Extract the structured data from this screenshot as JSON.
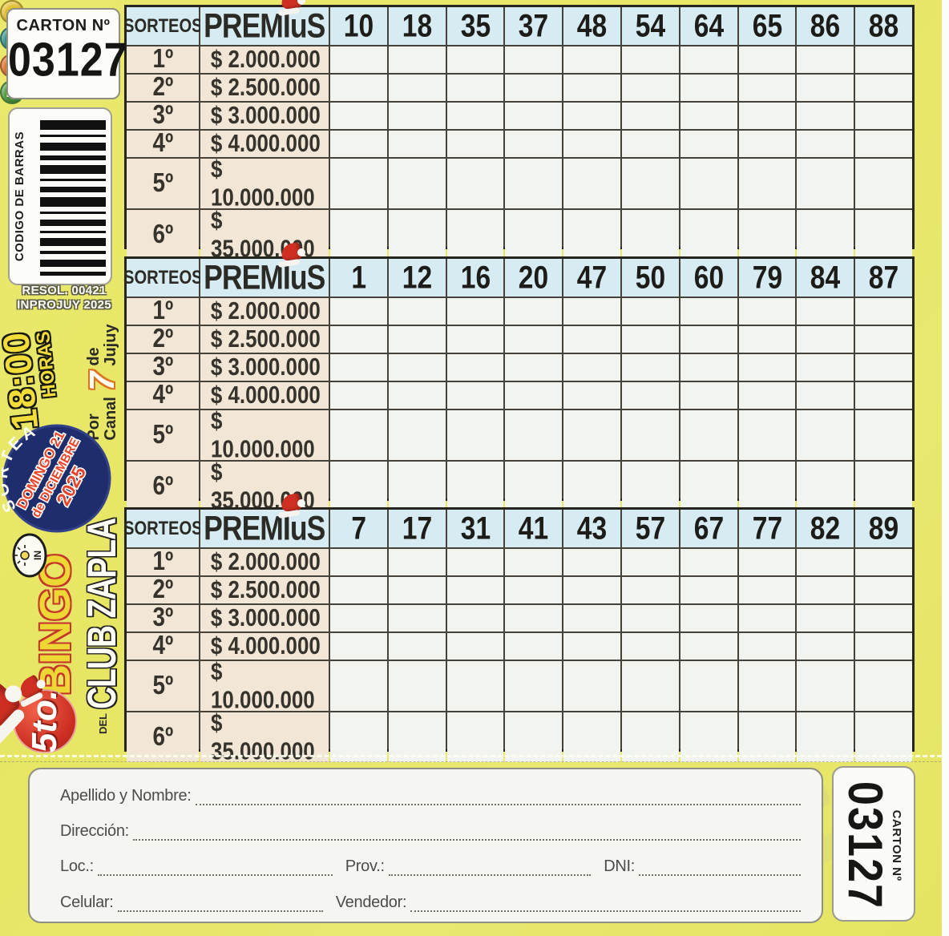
{
  "card": {
    "header_box": {
      "label": "CARTON Nº",
      "number": "03127"
    },
    "barcode": {
      "label": "CODIGO DE BARRAS"
    },
    "resolution": {
      "line1": "RESOL. 00421",
      "line2": "INPROJUY 2025"
    },
    "time_badge": {
      "time": "18:00",
      "unit": "HORAS"
    },
    "channel": {
      "word1": "Por",
      "word2": "Canal",
      "number": "7",
      "word3": "de",
      "word4": "Jujuy"
    },
    "draw_badge": {
      "arc": "SORTEA",
      "line1": "DOMINGO 21",
      "line2": "de DICIEMBRE",
      "line3": "2025"
    },
    "brand": {
      "mini_letters": [
        "M",
        "I",
        "N",
        "I"
      ],
      "mini_colors": [
        "#4f9d3e",
        "#e06f2a",
        "#2f8f86",
        "#e2bf2d"
      ],
      "bingo": "BINGO",
      "del": "DEL",
      "club": "CLUB ZAPLA",
      "edition": "5to.",
      "sun_text": "IN"
    }
  },
  "tables": [
    {
      "sorteos": "SORTEOS",
      "premios": "PREMIuS",
      "numbers": [
        "10",
        "18",
        "35",
        "37",
        "48",
        "54",
        "64",
        "65",
        "86",
        "88"
      ]
    },
    {
      "sorteos": "SORTEOS",
      "premios": "PREMIuS",
      "numbers": [
        "1",
        "12",
        "16",
        "20",
        "47",
        "50",
        "60",
        "79",
        "84",
        "87"
      ]
    },
    {
      "sorteos": "SORTEOS",
      "premios": "PREMIuS",
      "numbers": [
        "7",
        "17",
        "31",
        "41",
        "43",
        "57",
        "67",
        "77",
        "82",
        "89"
      ]
    }
  ],
  "prizes": [
    {
      "place": "1º",
      "amount": "$ 2.000.000"
    },
    {
      "place": "2º",
      "amount": "$ 2.500.000"
    },
    {
      "place": "3º",
      "amount": "$ 3.000.000"
    },
    {
      "place": "4º",
      "amount": "$ 4.000.000"
    },
    {
      "place": "5º",
      "amount": "$ 10.000.000"
    },
    {
      "place": "6º",
      "amount": "$ 35.000.000"
    }
  ],
  "form": {
    "apellido": "Apellido y Nombre:",
    "direccion": "Dirección:",
    "loc": "Loc.:",
    "prov": "Prov.:",
    "dni": "DNI:",
    "celular": "Celular:",
    "vendedor": "Vendedor:"
  },
  "stub": {
    "number": "03127",
    "label": "CARTON Nº"
  },
  "ghost": {
    "currency": "$",
    "digit": "2",
    "amount": "10.000"
  },
  "colors": {
    "card_yellow": "#e8e766",
    "header_blue": "#d6ecf2",
    "cream": "#f2e7d6",
    "cell_white": "#f2f4f0",
    "grid": "#45423a",
    "navy": "#1e2d6c",
    "red_ball": "#cd2f23",
    "badge_yellow": "#f2dd38"
  }
}
